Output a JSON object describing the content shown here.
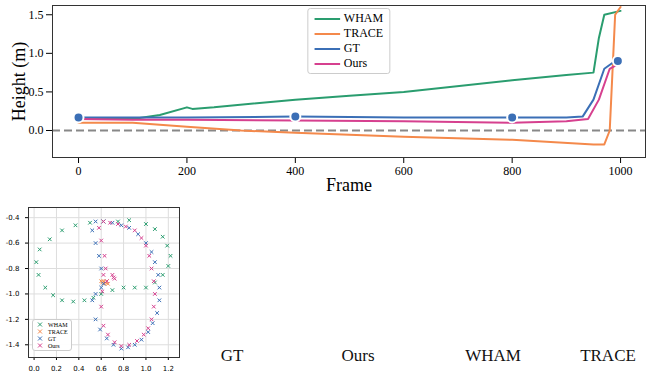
{
  "chart_data": [
    {
      "type": "line",
      "x_label": "Frame",
      "y_label": "Height (m)",
      "xlim": [
        -48,
        1046
      ],
      "xticks": [
        0,
        200,
        400,
        600,
        800,
        1000
      ],
      "ylim": [
        -0.35,
        1.62
      ],
      "yticks": [
        {
          "value": 0,
          "label": "0.0"
        },
        0.5,
        {
          "value": 1,
          "label": "1.0"
        },
        1.5
      ],
      "hlines": [
        0
      ],
      "legend": "top",
      "grid": false,
      "series": [
        {
          "name": "WHAM",
          "color": "#2a9d6f",
          "x": [
            0,
            100,
            150,
            200,
            210,
            250,
            400,
            500,
            600,
            800,
            900,
            950,
            960,
            970,
            1000
          ],
          "values": [
            0.15,
            0.15,
            0.2,
            0.3,
            0.28,
            0.3,
            0.4,
            0.45,
            0.5,
            0.65,
            0.72,
            0.75,
            1.2,
            1.5,
            1.55
          ]
        },
        {
          "name": "TRACE",
          "color": "#f4894b",
          "x": [
            0,
            100,
            200,
            300,
            400,
            600,
            800,
            950,
            970,
            980,
            990,
            1000
          ],
          "values": [
            0.1,
            0.1,
            0.05,
            0.0,
            -0.03,
            -0.08,
            -0.12,
            -0.18,
            -0.18,
            0.0,
            1.5,
            1.6
          ]
        },
        {
          "name": "GT",
          "color": "#3b6fb6",
          "x": [
            0,
            100,
            200,
            400,
            600,
            800,
            900,
            930,
            950,
            970,
            990,
            1000
          ],
          "values": [
            0.17,
            0.17,
            0.17,
            0.18,
            0.17,
            0.17,
            0.17,
            0.18,
            0.4,
            0.8,
            0.9,
            0.9
          ]
        },
        {
          "name": "Ours",
          "color": "#d6408f",
          "x": [
            0,
            100,
            200,
            400,
            600,
            800,
            900,
            940,
            960,
            980,
            1000
          ],
          "values": [
            0.15,
            0.14,
            0.14,
            0.13,
            0.12,
            0.1,
            0.12,
            0.15,
            0.4,
            0.8,
            0.88
          ]
        }
      ],
      "keyframes": {
        "x": [
          0,
          400,
          800,
          995
        ],
        "values": [
          0.17,
          0.18,
          0.17,
          0.9
        ],
        "color": "#3b6fb6"
      }
    },
    {
      "type": "scatter",
      "xlim": [
        -0.05,
        1.3
      ],
      "xticks": [
        {
          "value": 0,
          "label": "0.0"
        },
        0.2,
        0.4,
        0.6,
        0.8,
        {
          "value": 1,
          "label": "1.0"
        },
        1.2
      ],
      "ylim": [
        -1.5,
        -0.32
      ],
      "yticks": [
        -0.4,
        -0.6,
        -0.8,
        {
          "value": -1,
          "label": "-1.0"
        },
        -1.2,
        -1.4
      ],
      "grid": true,
      "legend": "lower left",
      "marker": "x",
      "series": [
        {
          "name": "WHAM",
          "color": "#2a9d6f",
          "x": [
            0.85,
            0.75,
            0.62,
            0.5,
            0.37,
            0.25,
            0.14,
            0.05,
            0.02,
            0.04,
            0.1,
            0.17,
            0.25,
            0.35,
            0.45,
            0.53,
            0.6,
            0.7,
            0.8,
            0.9,
            1.0,
            1.08,
            1.15,
            1.2,
            1.22,
            1.19,
            1.15,
            1.08,
            1.0
          ],
          "values": [
            -0.42,
            -0.43,
            -0.43,
            -0.44,
            -0.46,
            -0.5,
            -0.57,
            -0.65,
            -0.75,
            -0.85,
            -0.95,
            -1.01,
            -1.05,
            -1.06,
            -1.05,
            -1.03,
            -1.0,
            -0.97,
            -0.95,
            -0.95,
            -0.95,
            -0.91,
            -0.85,
            -0.78,
            -0.7,
            -0.62,
            -0.55,
            -0.49,
            -0.45
          ]
        },
        {
          "name": "TRACE",
          "color": "#f4894b",
          "x": [
            0.6,
            0.61,
            0.62,
            0.63,
            0.64,
            0.65,
            0.66
          ],
          "values": [
            -0.9,
            -0.91,
            -0.9,
            -0.92,
            -0.91,
            -0.9,
            -0.92
          ]
        },
        {
          "name": "GT",
          "color": "#3b6fb6",
          "x": [
            0.62,
            0.6,
            0.58,
            0.55,
            0.52,
            0.55,
            0.62,
            0.7,
            0.78,
            0.85,
            0.93,
            1.0,
            1.05,
            1.08,
            1.11,
            1.12,
            1.12,
            1.1,
            1.06,
            1.02,
            0.96,
            0.9,
            0.84,
            0.78,
            0.71,
            0.65,
            0.59,
            0.55,
            0.52,
            0.55,
            0.6
          ],
          "values": [
            -0.92,
            -0.8,
            -0.7,
            -0.6,
            -0.5,
            -0.43,
            -0.43,
            -0.44,
            -0.46,
            -0.48,
            -0.53,
            -0.6,
            -0.67,
            -0.75,
            -0.85,
            -0.95,
            -1.05,
            -1.15,
            -1.23,
            -1.3,
            -1.36,
            -1.4,
            -1.42,
            -1.43,
            -1.4,
            -1.35,
            -1.28,
            -1.2,
            -1.05,
            -1.0,
            -0.95
          ]
        },
        {
          "name": "Ours",
          "color": "#d6408f",
          "x": [
            0.65,
            0.64,
            0.63,
            0.6,
            0.58,
            0.62,
            0.68,
            0.75,
            0.82,
            0.9,
            0.96,
            1.0,
            1.03,
            1.05,
            1.07,
            1.08,
            1.07,
            1.05,
            1.02,
            0.98,
            0.92,
            0.85,
            0.78,
            0.72,
            0.66,
            0.62,
            0.6,
            0.61,
            0.62,
            0.7,
            0.71,
            0.72
          ],
          "values": [
            -0.9,
            -0.8,
            -0.7,
            -0.58,
            -0.48,
            -0.43,
            -0.44,
            -0.45,
            -0.47,
            -0.5,
            -0.56,
            -0.62,
            -0.7,
            -0.8,
            -0.9,
            -1.0,
            -1.1,
            -1.2,
            -1.27,
            -1.32,
            -1.37,
            -1.4,
            -1.41,
            -1.38,
            -1.32,
            -1.25,
            -1.1,
            -0.98,
            -0.85,
            -0.85,
            -0.87,
            -0.88
          ]
        }
      ]
    }
  ],
  "render_labels": [
    "GT",
    "Ours",
    "WHAM",
    "TRACE"
  ]
}
